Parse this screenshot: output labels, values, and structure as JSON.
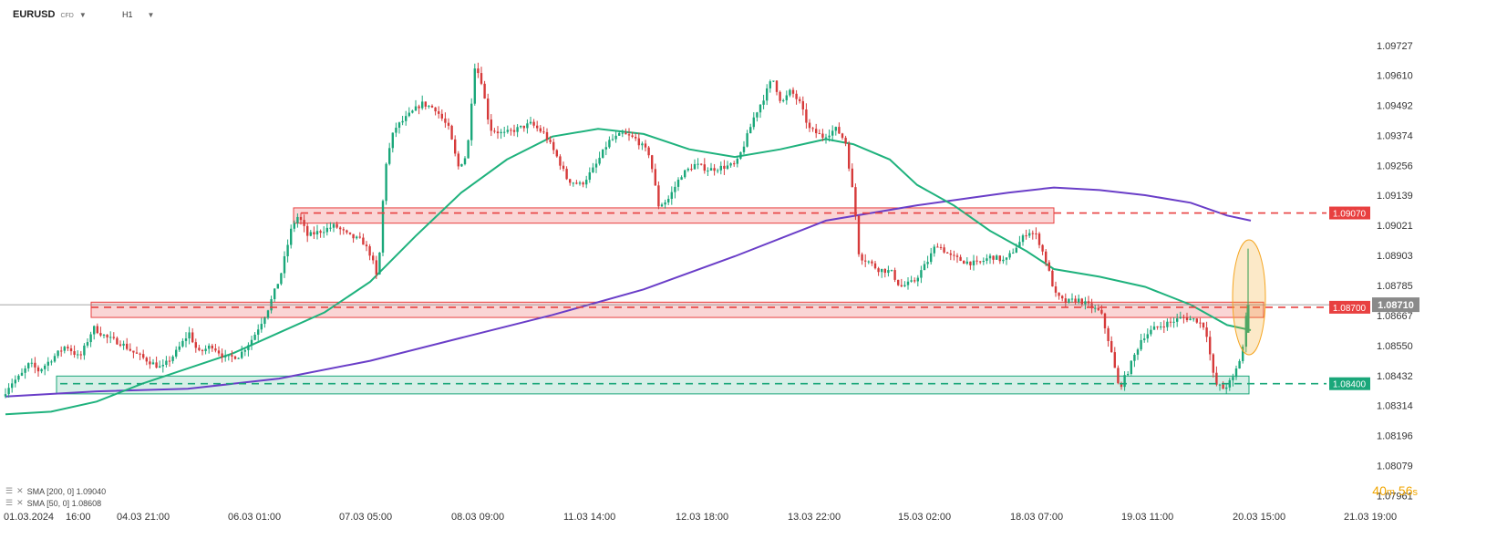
{
  "header": {
    "symbol": "EURUSD",
    "symbol_sub": "CFD",
    "timeframe": "H1"
  },
  "legend": {
    "sma200_label": "SMA [200, 0] 1.09040",
    "sma50_label": "SMA [50, 0] 1.08608"
  },
  "countdown": {
    "minutes": "40",
    "m": "m",
    "seconds": "56",
    "s": "s"
  },
  "colors": {
    "bull": "#1aa77a",
    "bear": "#d63a3a",
    "sma50": "#1fb27d",
    "sma200": "#6a3ec8",
    "resistance": "#e84040",
    "support": "#1aa77a",
    "highlight": "#f5a623"
  },
  "chart_data": {
    "type": "candlestick",
    "symbol": "EURUSD",
    "timeframe": "H1",
    "ylim": [
      1.0793,
      1.0982
    ],
    "y_ticks": [
      "1.09727",
      "1.09610",
      "1.09492",
      "1.09374",
      "1.09256",
      "1.09139",
      "1.09021",
      "1.08903",
      "1.08785",
      "1.08667",
      "1.08550",
      "1.08432",
      "1.08314",
      "1.08196",
      "1.08079",
      "1.07961"
    ],
    "x_ticks": [
      "01.03.2024",
      "16:00",
      "04.03 21:00",
      "06.03 01:00",
      "07.03 05:00",
      "08.03 09:00",
      "11.03 14:00",
      "12.03 18:00",
      "13.03 22:00",
      "15.03 02:00",
      "18.03 07:00",
      "19.03 11:00",
      "20.03 15:00",
      "21.03 19:00"
    ],
    "current_price": "1.08710",
    "levels": [
      {
        "label": "1.09070",
        "value": 1.0907,
        "type": "resistance"
      },
      {
        "label": "1.08700",
        "value": 1.087,
        "type": "resistance"
      },
      {
        "label": "1.08400",
        "value": 1.084,
        "type": "support"
      }
    ],
    "zones": [
      {
        "from": 1.0903,
        "to": 1.0909,
        "type": "resistance",
        "start_date": "06.03 01:00",
        "end_date": "18.03 07:00"
      },
      {
        "from": 1.0866,
        "to": 1.0872,
        "type": "resistance",
        "start_date": "01.03.2024 16:00",
        "end_date": "20.03 15:00"
      },
      {
        "from": 1.0836,
        "to": 1.0843,
        "type": "support",
        "start_date": "01.03.2024 16:00",
        "end_date": "20.03 15:00"
      }
    ],
    "series_price": [
      [
        0,
        1.0835
      ],
      [
        9,
        1.084
      ],
      [
        20,
        1.0843
      ],
      [
        30,
        1.0848
      ],
      [
        40,
        1.0845
      ],
      [
        55,
        1.085
      ],
      [
        70,
        1.0855
      ],
      [
        85,
        1.085
      ],
      [
        100,
        1.0862
      ],
      [
        115,
        1.0858
      ],
      [
        130,
        1.0856
      ],
      [
        145,
        1.0852
      ],
      [
        160,
        1.0849
      ],
      [
        175,
        1.0846
      ],
      [
        190,
        1.0852
      ],
      [
        205,
        1.086
      ],
      [
        215,
        1.0852
      ],
      [
        230,
        1.0855
      ],
      [
        245,
        1.085
      ],
      [
        260,
        1.0851
      ],
      [
        275,
        1.0858
      ],
      [
        290,
        1.0868
      ],
      [
        305,
        1.0882
      ],
      [
        318,
        1.0902
      ],
      [
        325,
        1.0906
      ],
      [
        335,
        1.0898
      ],
      [
        350,
        1.09
      ],
      [
        365,
        1.0902
      ],
      [
        380,
        1.0898
      ],
      [
        395,
        1.0896
      ],
      [
        405,
        1.089
      ],
      [
        412,
        1.088
      ],
      [
        420,
        1.0925
      ],
      [
        430,
        1.094
      ],
      [
        445,
        1.0945
      ],
      [
        460,
        1.095
      ],
      [
        475,
        1.0948
      ],
      [
        490,
        1.094
      ],
      [
        500,
        1.0925
      ],
      [
        510,
        1.093
      ],
      [
        518,
        1.0965
      ],
      [
        525,
        1.096
      ],
      [
        535,
        1.094
      ],
      [
        550,
        1.0938
      ],
      [
        565,
        1.094
      ],
      [
        580,
        1.0942
      ],
      [
        595,
        1.0938
      ],
      [
        610,
        1.0928
      ],
      [
        620,
        1.092
      ],
      [
        635,
        1.0918
      ],
      [
        650,
        1.0925
      ],
      [
        665,
        1.0935
      ],
      [
        680,
        1.0938
      ],
      [
        695,
        1.0936
      ],
      [
        710,
        1.093
      ],
      [
        720,
        1.091
      ],
      [
        730,
        1.0912
      ],
      [
        745,
        1.0922
      ],
      [
        760,
        1.0926
      ],
      [
        775,
        1.0924
      ],
      [
        790,
        1.0925
      ],
      [
        805,
        1.0926
      ],
      [
        815,
        1.0935
      ],
      [
        825,
        1.0945
      ],
      [
        835,
        1.0952
      ],
      [
        845,
        1.096
      ],
      [
        855,
        1.095
      ],
      [
        865,
        1.0955
      ],
      [
        875,
        1.095
      ],
      [
        885,
        1.094
      ],
      [
        900,
        1.0937
      ],
      [
        915,
        1.094
      ],
      [
        925,
        1.0935
      ],
      [
        935,
        1.091
      ],
      [
        940,
        1.089
      ],
      [
        950,
        1.0888
      ],
      [
        960,
        1.0885
      ],
      [
        975,
        1.0884
      ],
      [
        985,
        1.0878
      ],
      [
        1000,
        1.088
      ],
      [
        1015,
        1.0888
      ],
      [
        1025,
        1.0895
      ],
      [
        1040,
        1.089
      ],
      [
        1055,
        1.0888
      ],
      [
        1070,
        1.0887
      ],
      [
        1085,
        1.089
      ],
      [
        1100,
        1.0888
      ],
      [
        1115,
        1.0895
      ],
      [
        1125,
        1.09
      ],
      [
        1135,
        1.0898
      ],
      [
        1145,
        1.0888
      ],
      [
        1155,
        1.0875
      ],
      [
        1165,
        1.0872
      ],
      [
        1180,
        1.0873
      ],
      [
        1195,
        1.087
      ],
      [
        1205,
        1.0868
      ],
      [
        1215,
        1.0855
      ],
      [
        1225,
        1.0838
      ],
      [
        1235,
        1.0845
      ],
      [
        1250,
        1.0858
      ],
      [
        1265,
        1.0862
      ],
      [
        1280,
        1.0864
      ],
      [
        1295,
        1.0866
      ],
      [
        1310,
        1.0865
      ],
      [
        1320,
        1.0862
      ],
      [
        1330,
        1.084
      ],
      [
        1340,
        1.0838
      ],
      [
        1350,
        1.0842
      ],
      [
        1360,
        1.0852
      ],
      [
        1366,
        1.0871
      ]
    ],
    "sma50": [
      [
        0,
        1.0828
      ],
      [
        50,
        1.0829
      ],
      [
        100,
        1.0833
      ],
      [
        150,
        1.084
      ],
      [
        200,
        1.0846
      ],
      [
        250,
        1.0852
      ],
      [
        300,
        1.086
      ],
      [
        350,
        1.0868
      ],
      [
        400,
        1.088
      ],
      [
        450,
        1.0898
      ],
      [
        500,
        1.0915
      ],
      [
        550,
        1.0928
      ],
      [
        600,
        1.0937
      ],
      [
        650,
        1.094
      ],
      [
        700,
        1.0938
      ],
      [
        750,
        1.0932
      ],
      [
        800,
        1.0929
      ],
      [
        850,
        1.0932
      ],
      [
        900,
        1.0936
      ],
      [
        930,
        1.0934
      ],
      [
        970,
        1.0928
      ],
      [
        1000,
        1.0918
      ],
      [
        1040,
        1.091
      ],
      [
        1080,
        1.09
      ],
      [
        1120,
        1.0892
      ],
      [
        1150,
        1.0885
      ],
      [
        1200,
        1.0882
      ],
      [
        1250,
        1.0878
      ],
      [
        1300,
        1.0871
      ],
      [
        1340,
        1.0863
      ],
      [
        1366,
        1.0861
      ]
    ],
    "sma200": [
      [
        0,
        1.0835
      ],
      [
        100,
        1.0837
      ],
      [
        200,
        1.0838
      ],
      [
        300,
        1.0842
      ],
      [
        400,
        1.0849
      ],
      [
        500,
        1.0858
      ],
      [
        600,
        1.0867
      ],
      [
        700,
        1.0877
      ],
      [
        800,
        1.089
      ],
      [
        900,
        1.0904
      ],
      [
        1000,
        1.091
      ],
      [
        1060,
        1.0913
      ],
      [
        1100,
        1.0915
      ],
      [
        1150,
        1.0917
      ],
      [
        1200,
        1.0916
      ],
      [
        1250,
        1.0914
      ],
      [
        1300,
        1.0911
      ],
      [
        1340,
        1.0906
      ],
      [
        1366,
        1.0904
      ]
    ],
    "annotations": [
      {
        "type": "ellipse",
        "note": "highlight latest spike",
        "x_index": 1366
      }
    ]
  }
}
